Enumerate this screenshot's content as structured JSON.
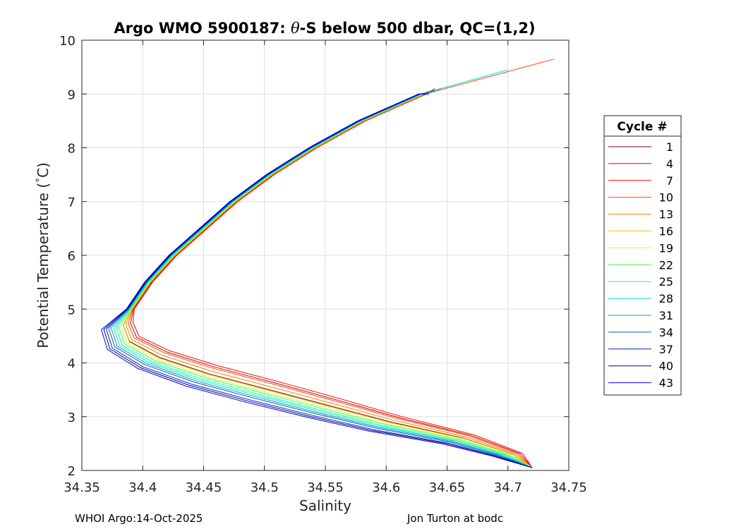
{
  "chart_data": {
    "type": "line",
    "title_prefix": "Argo WMO 5900187: ",
    "title_symbol": "θ",
    "title_suffix": "-S below 500 dbar,  QC=(1,2)",
    "xlabel": "Salinity",
    "ylabel_prefix": "Potential Temperature (",
    "ylabel_degree": "°",
    "ylabel_suffix": "C)",
    "xlim": [
      34.35,
      34.75
    ],
    "ylim": [
      2,
      10
    ],
    "xticks": [
      34.35,
      34.4,
      34.45,
      34.5,
      34.55,
      34.6,
      34.65,
      34.7,
      34.75
    ],
    "xtick_labels": [
      "34.35",
      "34.4",
      "34.45",
      "34.5",
      "34.55",
      "34.6",
      "34.65",
      "34.7",
      "34.75"
    ],
    "yticks": [
      2,
      3,
      4,
      5,
      6,
      7,
      8,
      9,
      10
    ],
    "ytick_labels": [
      "2",
      "3",
      "4",
      "5",
      "6",
      "7",
      "8",
      "9",
      "10"
    ],
    "grid": true,
    "legend_title": "Cycle #",
    "legend_position": "outside-right",
    "base_profile": {
      "theta": [
        2.05,
        2.3,
        2.6,
        2.9,
        3.2,
        3.5,
        3.8,
        4.1,
        4.4,
        4.7,
        5.0,
        5.5,
        6.0,
        6.5,
        7.0,
        7.5,
        8.0,
        8.5,
        9.0
      ],
      "salinity": [
        34.72,
        34.7,
        34.66,
        34.6,
        34.55,
        34.5,
        34.45,
        34.41,
        34.385,
        34.38,
        34.39,
        34.405,
        34.425,
        34.45,
        34.475,
        34.505,
        34.54,
        34.58,
        34.63
      ]
    },
    "series": [
      {
        "name": "1",
        "color": "#800000",
        "s_offset": 0.004,
        "t_offset": 0.0,
        "top_theta": 9.05,
        "top_salinity": 34.635
      },
      {
        "name": "4",
        "color": "#c00000",
        "s_offset": 0.01,
        "t_offset": 0.12,
        "top_theta": 9.1,
        "top_salinity": 34.64
      },
      {
        "name": "7",
        "color": "#ff0000",
        "s_offset": 0.012,
        "t_offset": 0.15,
        "top_theta": 9.05,
        "top_salinity": 34.635
      },
      {
        "name": "10",
        "color": "#ff4000",
        "s_offset": 0.008,
        "t_offset": 0.1,
        "top_theta": 9.65,
        "top_salinity": 34.738
      },
      {
        "name": "13",
        "color": "#ff8000",
        "s_offset": 0.006,
        "t_offset": 0.05,
        "top_theta": 9.05,
        "top_salinity": 34.64
      },
      {
        "name": "16",
        "color": "#ffbf00",
        "s_offset": 0.004,
        "t_offset": -0.02,
        "top_theta": 9.05,
        "top_salinity": 34.64
      },
      {
        "name": "19",
        "color": "#bfff40",
        "s_offset": 0.002,
        "t_offset": -0.05,
        "top_theta": 9.05,
        "top_salinity": 34.64
      },
      {
        "name": "22",
        "color": "#40ff40",
        "s_offset": 0.0,
        "t_offset": -0.07,
        "top_theta": 9.05,
        "top_salinity": 34.64
      },
      {
        "name": "25",
        "color": "#00ffa0",
        "s_offset": -0.002,
        "t_offset": -0.1,
        "top_theta": 9.1,
        "top_salinity": 34.645
      },
      {
        "name": "28",
        "color": "#00e0e0",
        "s_offset": -0.004,
        "t_offset": -0.12,
        "top_theta": 9.45,
        "top_salinity": 34.7
      },
      {
        "name": "31",
        "color": "#00a0c0",
        "s_offset": -0.006,
        "t_offset": -0.14,
        "top_theta": 9.1,
        "top_salinity": 34.645
      },
      {
        "name": "34",
        "color": "#0060a0",
        "s_offset": -0.008,
        "t_offset": -0.16,
        "top_theta": 9.05,
        "top_salinity": 34.64
      },
      {
        "name": "37",
        "color": "#0020c0",
        "s_offset": -0.01,
        "t_offset": -0.2,
        "top_theta": 9.0,
        "top_salinity": 34.635
      },
      {
        "name": "40",
        "color": "#000080",
        "s_offset": -0.012,
        "t_offset": -0.22,
        "top_theta": 9.0,
        "top_salinity": 34.635
      },
      {
        "name": "43",
        "color": "#0000ff",
        "s_offset": -0.014,
        "t_offset": -0.24,
        "top_theta": 9.0,
        "top_salinity": 34.635
      }
    ]
  },
  "footer": {
    "left": "WHOI Argo:14-Oct-2025",
    "right": "Jon Turton at bodc"
  }
}
